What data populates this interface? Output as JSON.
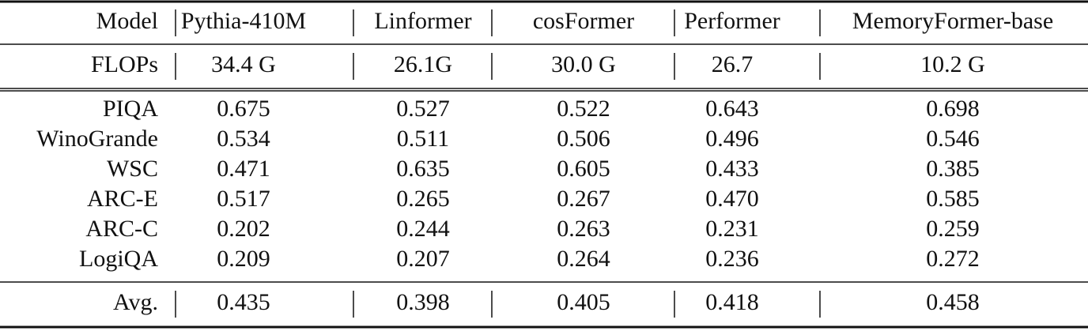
{
  "table": {
    "header": [
      "Model",
      "Pythia-410M",
      "Linformer",
      "cosFormer",
      "Performer",
      "MemoryFormer-base"
    ],
    "flops": [
      "FLOPs",
      "34.4 G",
      "26.1G",
      "30.0 G",
      "26.7",
      "10.2 G"
    ],
    "rows": [
      [
        "PIQA",
        "0.675",
        "0.527",
        "0.522",
        "0.643",
        "0.698"
      ],
      [
        "WinoGrande",
        "0.534",
        "0.511",
        "0.506",
        "0.496",
        "0.546"
      ],
      [
        "WSC",
        "0.471",
        "0.635",
        "0.605",
        "0.433",
        "0.385"
      ],
      [
        "ARC-E",
        "0.517",
        "0.265",
        "0.267",
        "0.470",
        "0.585"
      ],
      [
        "ARC-C",
        "0.202",
        "0.244",
        "0.263",
        "0.231",
        "0.259"
      ],
      [
        "LogiQA",
        "0.209",
        "0.207",
        "0.264",
        "0.236",
        "0.272"
      ]
    ],
    "avg": [
      "Avg.",
      "0.435",
      "0.398",
      "0.405",
      "0.418",
      "0.458"
    ]
  }
}
